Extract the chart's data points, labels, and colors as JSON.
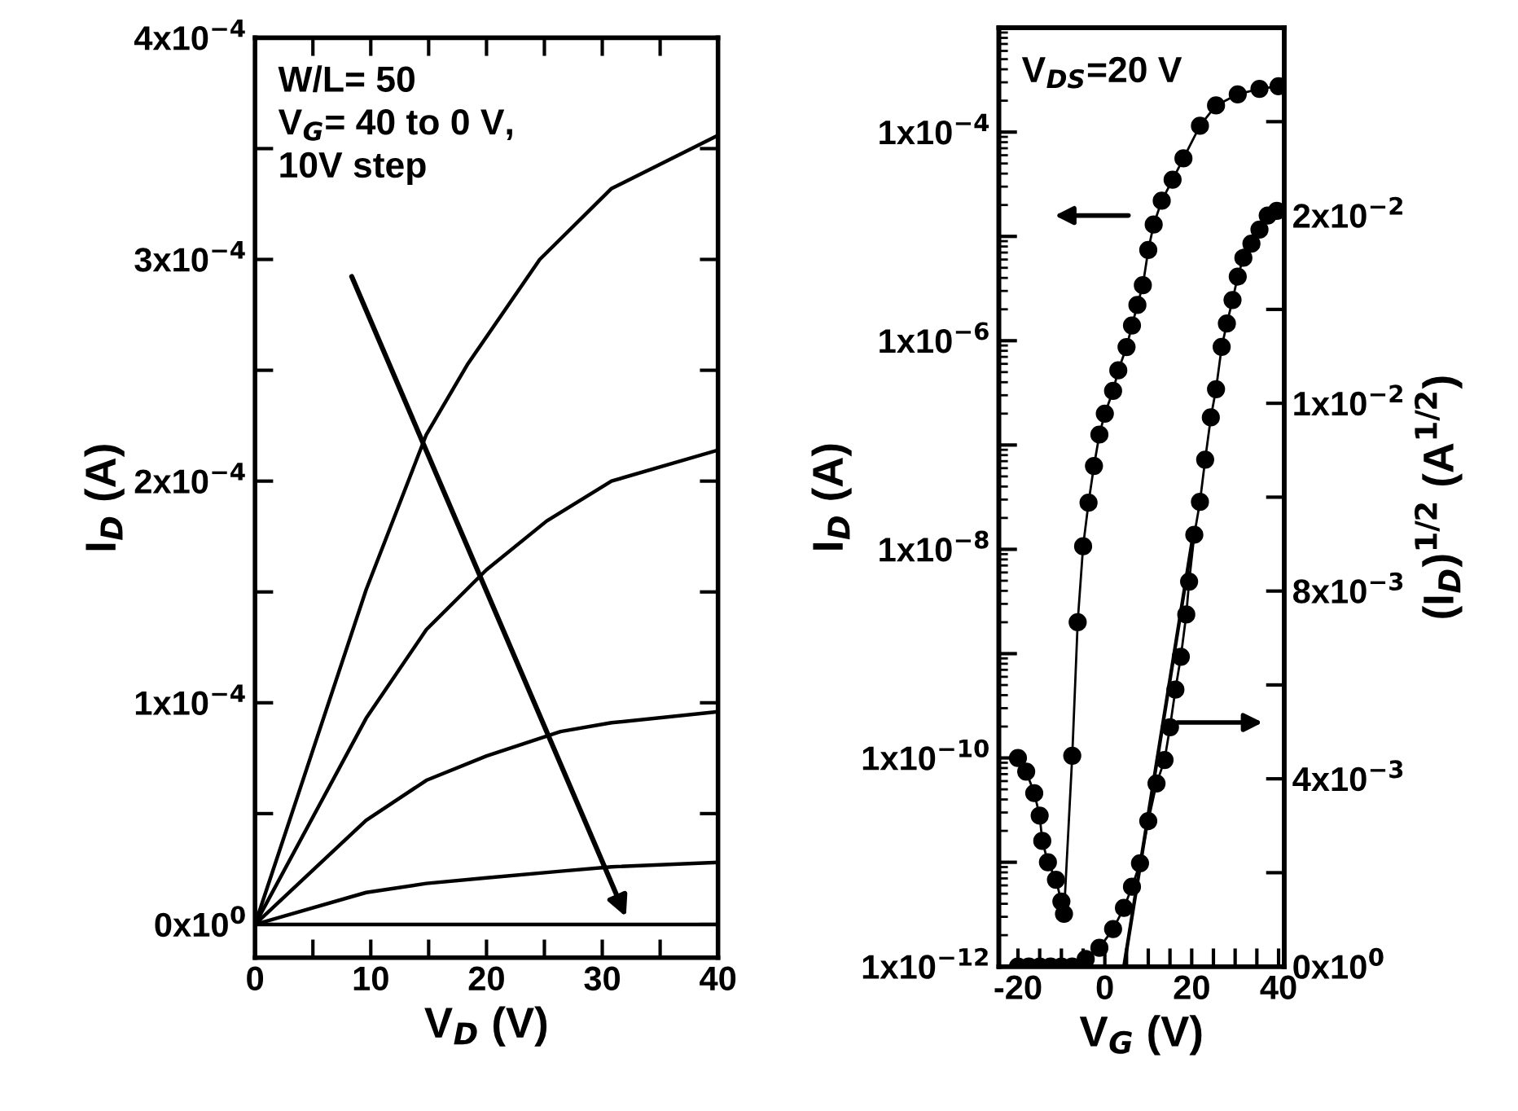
{
  "chart_data": [
    {
      "type": "line",
      "xlabel": "V$_{D}$ (V)",
      "ylabel": "I$_{D}$ (A)",
      "xlim": [
        0,
        40
      ],
      "ylim": [
        -1.5e-05,
        0.0004
      ],
      "xticks": [
        0,
        {
          "value": 5,
          "label": null
        },
        10,
        {
          "value": 15,
          "label": null
        },
        20,
        {
          "value": 25,
          "label": null
        },
        30,
        {
          "value": 35,
          "label": null
        },
        40
      ],
      "yticks": [
        {
          "value": 0,
          "label": "0x10$^{0}$"
        },
        {
          "value": 5e-05,
          "label": null
        },
        {
          "value": 0.0001,
          "label": "1x10$^{−4}$"
        },
        {
          "value": 0.00015,
          "label": null
        },
        {
          "value": 0.0002,
          "label": "2x10$^{−4}$"
        },
        {
          "value": 0.00025,
          "label": null
        },
        {
          "value": 0.0003,
          "label": "3x10$^{−4}$"
        },
        {
          "value": 0.00035,
          "label": null
        },
        {
          "value": 0.0004,
          "label": "4x10$^{−4}$"
        }
      ],
      "annotations": [
        "W/L= 50\nV$_{G}$= 40 to 0 V,\n10V step"
      ],
      "grid": false,
      "legend": false,
      "line_style": "solid",
      "marker": "none",
      "series": [
        {
          "color": "#000000",
          "x": [
            0,
            9.6,
            14.8,
            18.4,
            24.6,
            30.8,
            40
          ],
          "values": [
            0,
            0.000151,
            0.000221,
            0.000253,
            0.0003,
            0.000332,
            0.000356
          ]
        },
        {
          "color": "#000000",
          "x": [
            0,
            9.6,
            14.8,
            20,
            25.2,
            30.8,
            40
          ],
          "values": [
            0,
            9.3e-05,
            0.000133,
            0.00016,
            0.000182,
            0.0002,
            0.000214
          ]
        },
        {
          "color": "#000000",
          "x": [
            0,
            9.6,
            14.8,
            20,
            26.4,
            30.8,
            40
          ],
          "values": [
            0,
            4.7e-05,
            6.5e-05,
            7.6e-05,
            8.7e-05,
            9.1e-05,
            9.6e-05
          ]
        },
        {
          "color": "#000000",
          "x": [
            0,
            9.6,
            14.8,
            20,
            26.4,
            30.8,
            40
          ],
          "values": [
            0,
            1.44e-05,
            1.85e-05,
            2.1e-05,
            2.4e-05,
            2.6e-05,
            2.8e-05
          ]
        },
        {
          "color": "#000000",
          "x": [
            0,
            40
          ],
          "values": [
            0,
            0
          ]
        }
      ]
    },
    {
      "type": "line",
      "xlabel": "V$_{G}$ (V)",
      "ylabel": "I$_{D}$ (A)",
      "y2label": "(I$_{D}$)$^{1/2}$ (A$^{1/2}$)",
      "log": "y",
      "xlim": [
        -24.4,
        41.3
      ],
      "ylim": [
        1e-12,
        0.001
      ],
      "y2lim": [
        0,
        0.02
      ],
      "xticks": [
        -20,
        {
          "value": -15,
          "label": null
        },
        {
          "value": -10,
          "label": null
        },
        {
          "value": -5,
          "label": null
        },
        0,
        {
          "value": 5,
          "label": null
        },
        {
          "value": 10,
          "label": null
        },
        {
          "value": 15,
          "label": null
        },
        20,
        {
          "value": 25,
          "label": null
        },
        {
          "value": 30,
          "label": null
        },
        {
          "value": 35,
          "label": null
        },
        40
      ],
      "yticks": [
        {
          "value": 1e-12,
          "label": "1x10$^{−12}$"
        },
        {
          "value": 1e-11,
          "label": null
        },
        {
          "value": 1e-10,
          "label": "1x10$^{−10}$"
        },
        {
          "value": 1e-09,
          "label": null
        },
        {
          "value": 1e-08,
          "label": "1x10$^{−8}$"
        },
        {
          "value": 1e-07,
          "label": null
        },
        {
          "value": 1e-06,
          "label": "1x10$^{−6}$"
        },
        {
          "value": 1e-05,
          "label": null
        },
        {
          "value": 0.0001,
          "label": "1x10$^{−4}$"
        },
        {
          "value": 0.001,
          "label": null
        }
      ],
      "y2ticks": [
        {
          "value": 0,
          "label": "0x10$^{0}$"
        },
        {
          "value": 0.002,
          "label": null
        },
        {
          "value": 0.004,
          "label": "4x10$^{−3}$"
        },
        {
          "value": 0.006,
          "label": null
        },
        {
          "value": 0.008,
          "label": "8x10$^{−3}$"
        },
        {
          "value": 0.01,
          "label": null
        },
        {
          "value": 0.012,
          "label": "1x10$^{−2}$"
        },
        {
          "value": 0.014,
          "label": null
        },
        {
          "value": 0.016,
          "label": "2x10$^{−2}$"
        },
        {
          "value": 0.018,
          "label": null
        }
      ],
      "annotations": [
        "V$_{DS}$=20 V"
      ],
      "grid": false,
      "legend": false,
      "line_style": "solid",
      "marker": "circle",
      "series": [
        {
          "color": "#000000",
          "x": [
            -20,
            -18.1,
            -16.25,
            -15,
            -14.4,
            -13.1,
            -11.25,
            -10,
            -9.4,
            -7.5,
            -6.25,
            -5,
            -3.75,
            -2.5,
            -1.25,
            0,
            1.9,
            3.1,
            5,
            6.25,
            7.5,
            8.75,
            10,
            11.25,
            13.1,
            15.6,
            18.1,
            21.9,
            25.6,
            30.6,
            35.6,
            40
          ],
          "values": [
            1e-10,
            7.4e-11,
            4.6e-11,
            2.8e-11,
            1.6e-11,
            1e-11,
            6.8e-12,
            4.2e-12,
            3.2e-12,
            1.05e-10,
            2e-09,
            1.07e-08,
            2.8e-08,
            6.3e-08,
            1.26e-07,
            2e-07,
            3.3e-07,
            5.2e-07,
            8.7e-07,
            1.4e-06,
            2.2e-06,
            3.4e-06,
            7.4e-06,
            1.3e-05,
            2.2e-05,
            3.5e-05,
            5.6e-05,
            0.000115,
            0.00018,
            0.00023,
            0.00026,
            0.000275
          ]
        },
        {
          "color": "#000000",
          "axis": "y2",
          "x": [
            -20,
            -17.5,
            -15,
            -12.5,
            -10,
            -7.5,
            -4.4,
            -1.25,
            1.9,
            4.4,
            6.25,
            8.1,
            10,
            11.9,
            13.75,
            15,
            16.25,
            17.5,
            18.75,
            19.4,
            20.6,
            21.9,
            23.1,
            24.4,
            25.6,
            26.9,
            28.1,
            29.4,
            30.6,
            31.9,
            33.75,
            35.6,
            37.5,
            39.6
          ],
          "values": [
            0,
            0,
            0,
            0,
            0,
            0,
            0.00016,
            0.0004,
            0.0008,
            0.00125,
            0.0017,
            0.0022,
            0.0031,
            0.0039,
            0.0044,
            0.0051,
            0.0059,
            0.0066,
            0.0075,
            0.0082,
            0.0092,
            0.0099,
            0.0108,
            0.0117,
            0.0123,
            0.0132,
            0.0137,
            0.0142,
            0.0147,
            0.0151,
            0.0154,
            0.0157,
            0.016,
            0.0161
          ]
        },
        {
          "color": "#000000",
          "axis": "y2",
          "type": "line",
          "marker": "none",
          "x": [
            4.4,
            20
          ],
          "values": [
            0,
            0.009
          ]
        }
      ]
    }
  ]
}
